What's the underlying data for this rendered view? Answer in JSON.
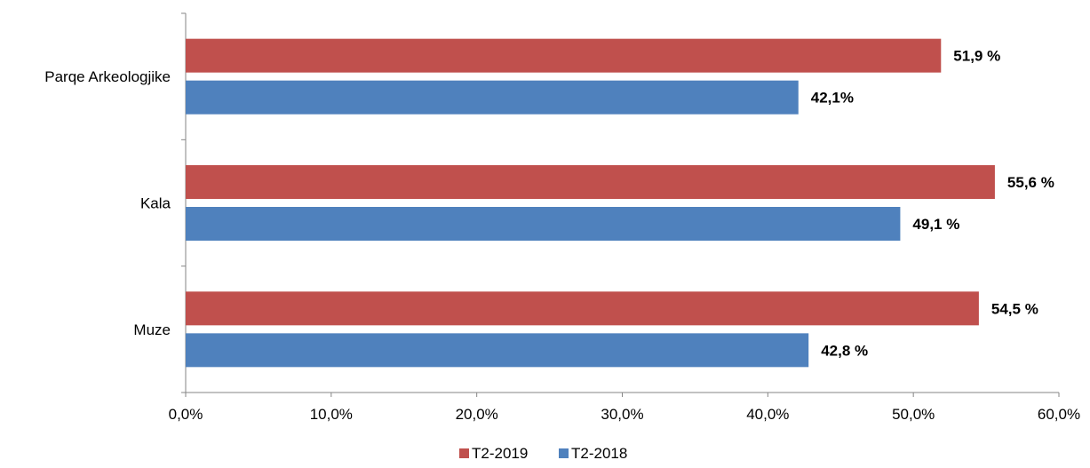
{
  "colors": {
    "T2-2019": "#c0504d",
    "T2-2018": "#4f81bd",
    "axis": "#868686"
  },
  "chart_data": {
    "type": "bar",
    "orientation": "horizontal",
    "categories": [
      "Parqe Arkeologjike",
      "Kala",
      "Muze"
    ],
    "series": [
      {
        "name": "T2-2019",
        "values": [
          51.9,
          55.6,
          54.5
        ],
        "labels": [
          "51,9 %",
          "55,6 %",
          "54,5 %"
        ]
      },
      {
        "name": "T2-2018",
        "values": [
          42.1,
          49.1,
          42.8
        ],
        "labels": [
          "42,1%",
          "49,1 %",
          "42,8 %"
        ]
      }
    ],
    "xlim": [
      0,
      60
    ],
    "xticks": [
      0,
      10,
      20,
      30,
      40,
      50,
      60
    ],
    "xtick_labels": [
      "0,0%",
      "10,0%",
      "20,0%",
      "30,0%",
      "40,0%",
      "50,0%",
      "60,0%"
    ],
    "grid": false,
    "legend_position": "bottom"
  }
}
